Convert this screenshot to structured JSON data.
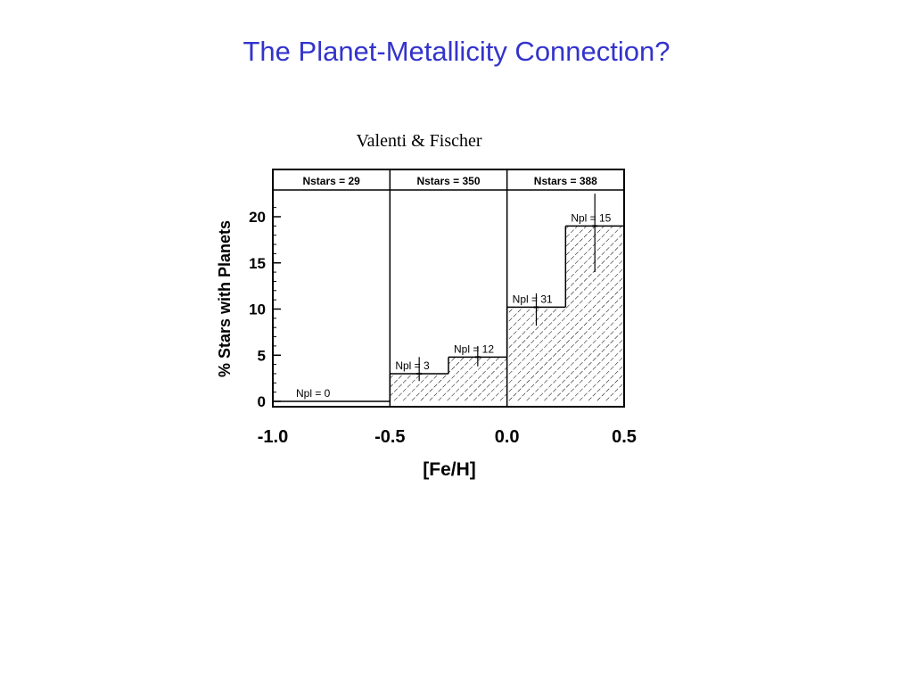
{
  "slide": {
    "title": "The Planet-Metallicity Connection?",
    "subtitle": "Valenti & Fischer"
  },
  "chart_data": {
    "type": "bar",
    "xlabel": "[Fe/H]",
    "ylabel": "% Stars with Planets",
    "xlim": [
      -1.0,
      0.5
    ],
    "ylim": [
      0,
      22
    ],
    "x_ticks": [
      -1.0,
      -0.5,
      0.0,
      0.5
    ],
    "x_tick_labels": [
      "-1.0",
      "-0.5",
      "0.0",
      "0.5"
    ],
    "y_ticks": [
      0,
      5,
      10,
      15,
      20
    ],
    "y_tick_labels": [
      "0",
      "5",
      "10",
      "15",
      "20"
    ],
    "bins": [
      {
        "x0": -1.0,
        "x1": -0.5,
        "value": 0,
        "label": "Npl = 0"
      },
      {
        "x0": -0.5,
        "x1": -0.25,
        "value": 3,
        "error": [
          0.8,
          1.8
        ],
        "label": "Npl = 3"
      },
      {
        "x0": -0.25,
        "x1": 0.0,
        "value": 4.8,
        "error": [
          1.0,
          1.2
        ],
        "label": "Npl = 12"
      },
      {
        "x0": 0.0,
        "x1": 0.25,
        "value": 10.2,
        "error": [
          2.0,
          1.5
        ],
        "label": "Npl = 31"
      },
      {
        "x0": 0.25,
        "x1": 0.5,
        "value": 19,
        "error": [
          5.0,
          3.5
        ],
        "label": "Npl = 15"
      }
    ],
    "panels": [
      {
        "x0": -1.0,
        "x1": -0.5,
        "label": "Nstars = 29"
      },
      {
        "x0": -0.5,
        "x1": 0.0,
        "label": "Nstars = 350"
      },
      {
        "x0": 0.0,
        "x1": 0.5,
        "label": "Nstars = 388"
      }
    ],
    "hatched": true,
    "grid": false
  }
}
